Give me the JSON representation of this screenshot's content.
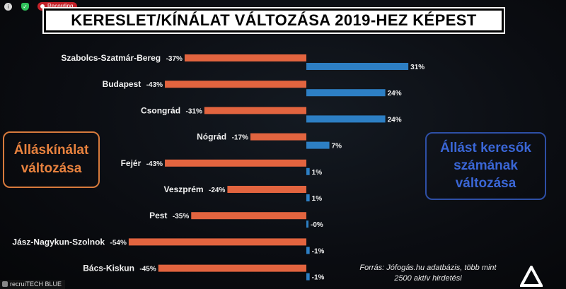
{
  "status": {
    "recording_label": "Recording"
  },
  "title": "KERESLET/KÍNÁLAT VÁLTOZÁSA 2019-HEZ KÉPEST",
  "left_box": {
    "line1": "Álláskínálat",
    "line2": "változása"
  },
  "right_box": {
    "line1": "Állást keresők",
    "line2": "számának",
    "line3": "változása"
  },
  "source": {
    "line1": "Forrás: Jófogás.hu adatbázis, több mint",
    "line2": "2500 aktív hirdetési"
  },
  "presenter": {
    "name": "recruiTECH BLUE"
  },
  "colors": {
    "supply": "#e2643f",
    "demand": "#2d7fc4",
    "text": "#f2f2f2"
  },
  "chart_data": {
    "type": "bar",
    "title": "KERESLET/KÍNÁLAT VÁLTOZÁSA 2019-HEZ KÉPEST",
    "categories": [
      "Szabolcs-Szatmár-Bereg",
      "Budapest",
      "Csongrád",
      "Nógrád",
      "Fejér",
      "Veszprém",
      "Pest",
      "Jász-Nagykun-Szolnok",
      "Bács-Kiskun"
    ],
    "series": [
      {
        "name": "Álláskínálat változása",
        "values": [
          -37,
          -43,
          -31,
          -17,
          -43,
          -24,
          -35,
          -54,
          -45
        ],
        "labels": [
          "-37%",
          "-43%",
          "-31%",
          "-17%",
          "-43%",
          "-24%",
          "-35%",
          "-54%",
          "-45%"
        ]
      },
      {
        "name": "Állást keresők számának változása",
        "values": [
          31,
          24,
          24,
          7,
          1,
          1,
          0,
          -1,
          -1
        ],
        "labels": [
          "31%",
          "24%",
          "24%",
          "7%",
          "1%",
          "1%",
          "-0%",
          "-1%",
          "-1%"
        ]
      }
    ],
    "unit": "%"
  }
}
